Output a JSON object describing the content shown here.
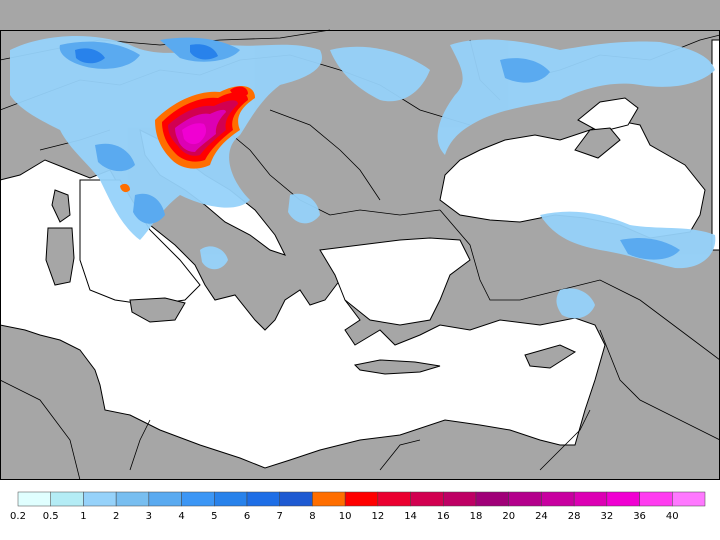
{
  "map": {
    "land_color": "#a6a6a6",
    "sea_color": "#ffffff",
    "border_color": "#000000"
  },
  "legend": {
    "labels": [
      "0.2",
      "0.5",
      "1",
      "2",
      "3",
      "4",
      "5",
      "6",
      "7",
      "8",
      "10",
      "12",
      "14",
      "16",
      "18",
      "20",
      "24",
      "28",
      "32",
      "36",
      "40"
    ],
    "colors": [
      "#e0ffff",
      "#b4ecf5",
      "#96d2fa",
      "#78bef0",
      "#5aaaf0",
      "#3c96f5",
      "#2882eb",
      "#1e6ee6",
      "#1e5ad2",
      "#ff6e00",
      "#ff0000",
      "#eb0030",
      "#d20050",
      "#be0064",
      "#a00078",
      "#b4008c",
      "#c800a0",
      "#dc00b4",
      "#f000d2",
      "#ff3cf0",
      "#ff78ff"
    ]
  }
}
